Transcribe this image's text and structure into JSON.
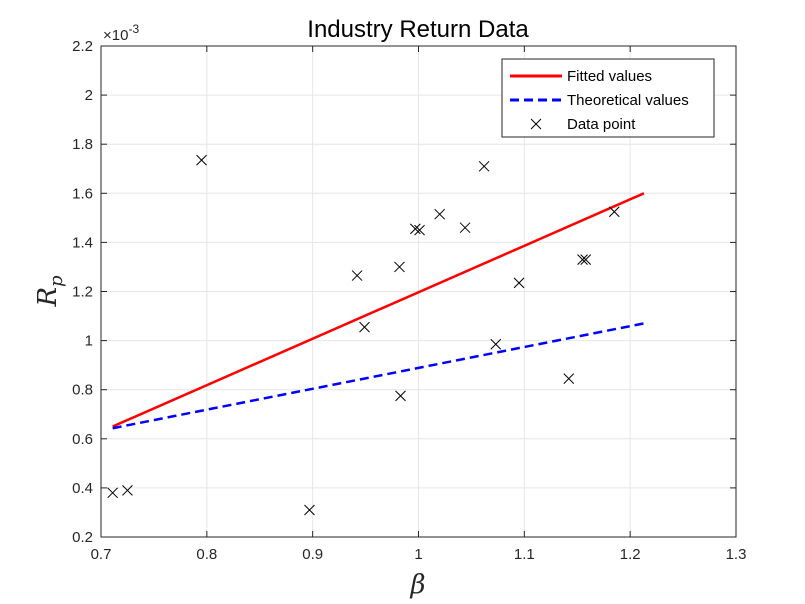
{
  "chart_data": {
    "type": "scatter",
    "title": "Industry Return Data",
    "xlabel": "β",
    "ylabel": "R",
    "ylabel_subscript": "p",
    "y_exponent_label": "×10",
    "y_exponent_power": "-3",
    "xlim": [
      0.7,
      1.3
    ],
    "ylim": [
      0.2,
      2.2
    ],
    "x_ticks": [
      0.7,
      0.8,
      0.9,
      1.0,
      1.1,
      1.2,
      1.3
    ],
    "x_tick_labels": [
      "0.7",
      "0.8",
      "0.9",
      "1",
      "1.1",
      "1.2",
      "1.3"
    ],
    "y_ticks": [
      0.2,
      0.4,
      0.6,
      0.8,
      1.0,
      1.2,
      1.4,
      1.6,
      1.8,
      2.0,
      2.2
    ],
    "y_tick_labels": [
      "0.2",
      "0.4",
      "0.6",
      "0.8",
      "1",
      "1.2",
      "1.4",
      "1.6",
      "1.8",
      "2",
      "2.2"
    ],
    "grid": true,
    "legend_position": "top-right",
    "series": [
      {
        "name": "Fitted values",
        "kind": "line",
        "style": "solid",
        "color": "#ff0000",
        "x": [
          0.711,
          1.213
        ],
        "y": [
          0.65,
          1.6
        ]
      },
      {
        "name": "Theoretical values",
        "kind": "line",
        "style": "dashed",
        "color": "#0000ff",
        "x": [
          0.711,
          1.213
        ],
        "y": [
          0.643,
          1.07
        ]
      },
      {
        "name": "Data point",
        "kind": "marker",
        "marker": "x",
        "color": "#000000",
        "x": [
          0.711,
          0.725,
          0.795,
          0.897,
          0.942,
          0.949,
          0.982,
          0.983,
          0.997,
          1.001,
          1.02,
          1.044,
          1.062,
          1.073,
          1.095,
          1.142,
          1.155,
          1.158,
          1.185
        ],
        "y": [
          0.38,
          0.39,
          1.735,
          0.31,
          1.265,
          1.055,
          1.3,
          0.775,
          1.455,
          1.45,
          1.515,
          1.46,
          1.71,
          0.985,
          1.235,
          0.845,
          1.33,
          1.33,
          1.525
        ]
      }
    ]
  }
}
